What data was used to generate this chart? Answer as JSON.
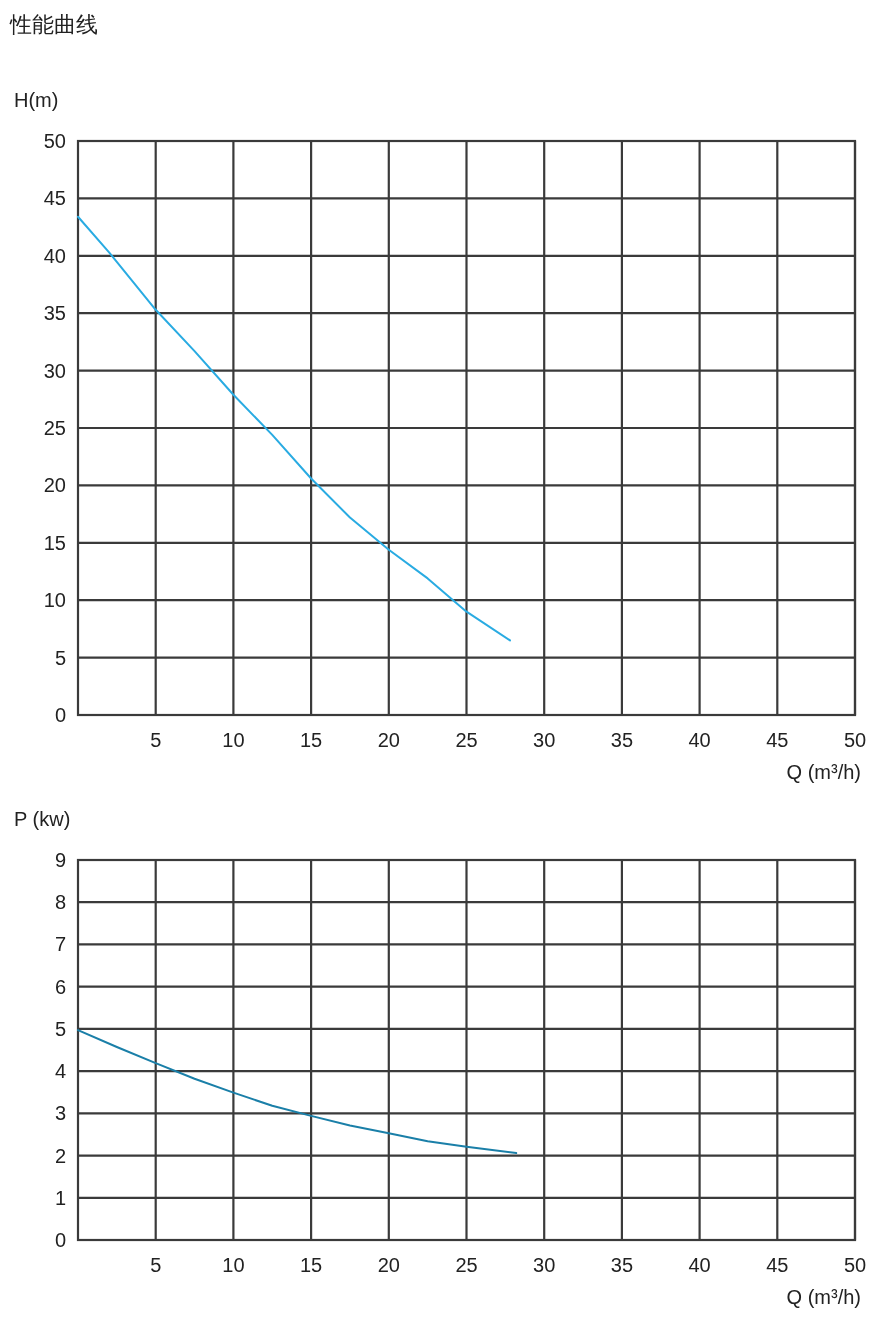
{
  "chart_data": [
    {
      "type": "line",
      "title": "性能曲线",
      "ylabel": "H(m)",
      "xlabel": "Q (m³/h)",
      "x": [
        0,
        2,
        5,
        7.5,
        10,
        12.5,
        15,
        17.5,
        20,
        22.5,
        25,
        27.8
      ],
      "series": [
        {
          "color": "#29abe2",
          "values": [
            43.4,
            40.3,
            35.3,
            31.7,
            27.9,
            24.4,
            20.6,
            17.2,
            14.4,
            11.9,
            9.0,
            6.5
          ]
        }
      ],
      "xlim": [
        0,
        50
      ],
      "xticks": [
        5,
        10,
        15,
        20,
        25,
        30,
        35,
        40,
        45,
        50
      ],
      "ylim": [
        0,
        50
      ],
      "yticks": [
        0,
        5,
        10,
        15,
        20,
        25,
        30,
        35,
        40,
        45,
        50
      ],
      "grid": true,
      "marker": "none",
      "line_style": "solid"
    },
    {
      "type": "line",
      "ylabel": "P (kw)",
      "xlabel": "Q (m³/h)",
      "x": [
        0,
        2.5,
        5,
        7.5,
        10,
        12.5,
        15,
        17.5,
        20,
        22.5,
        25,
        28.2
      ],
      "series": [
        {
          "color": "#1a7fa8",
          "values": [
            4.97,
            4.57,
            4.19,
            3.82,
            3.49,
            3.18,
            2.94,
            2.71,
            2.53,
            2.34,
            2.21,
            2.06
          ]
        }
      ],
      "xlim": [
        0,
        50
      ],
      "xticks": [
        5,
        10,
        15,
        20,
        25,
        30,
        35,
        40,
        45,
        50
      ],
      "ylim": [
        0,
        9
      ],
      "yticks": [
        0,
        1,
        2,
        3,
        4,
        5,
        6,
        7,
        8,
        9
      ],
      "grid": true,
      "marker": "none",
      "line_style": "solid"
    }
  ]
}
